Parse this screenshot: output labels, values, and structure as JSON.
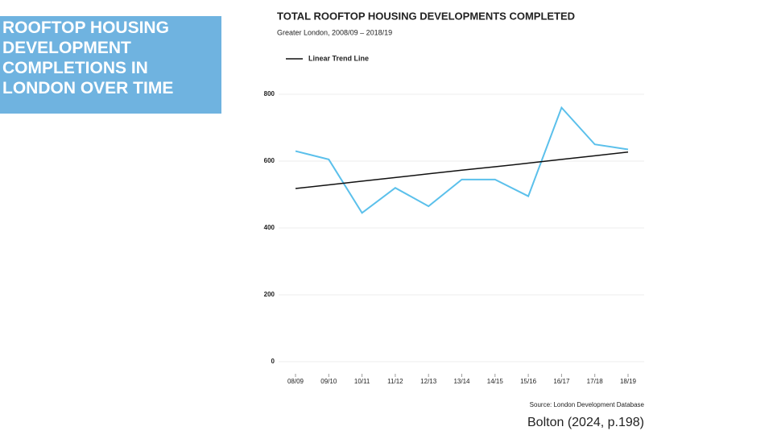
{
  "slide": {
    "heading": [
      "ROOFTOP HOUSING",
      "DEVELOPMENT",
      "COMPLETIONS IN",
      "LONDON OVER TIME"
    ],
    "citation": "Bolton (2024, p.198)"
  },
  "chart_data": {
    "type": "line",
    "title": "TOTAL ROOFTOP HOUSING DEVELOPMENTS COMPLETED",
    "subtitle": "Greater London, 2008/09 – 2018/19",
    "categories": [
      "08/09",
      "09/10",
      "10/11",
      "11/12",
      "12/13",
      "13/14",
      "14/15",
      "15/16",
      "16/17",
      "17/18",
      "18/19"
    ],
    "series": [
      {
        "color": "#5bc0eb",
        "values": [
          630,
          605,
          445,
          520,
          465,
          545,
          545,
          495,
          760,
          650,
          635
        ]
      },
      {
        "name": "Linear Trend Line",
        "color": "#111111",
        "values": [
          518,
          529,
          540,
          551,
          562,
          573,
          583,
          594,
          605,
          616,
          627
        ]
      }
    ],
    "ylim": [
      0,
      800
    ],
    "yticks": [
      0,
      200,
      400,
      600,
      800
    ],
    "grid": true,
    "legend": "top-left",
    "source": "Source: London Development Database"
  }
}
